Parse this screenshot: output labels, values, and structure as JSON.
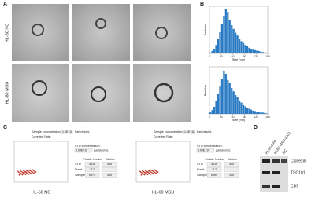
{
  "panels": {
    "a": "A",
    "b": "B",
    "c": "C",
    "d": "D"
  },
  "em": {
    "row_labels": [
      "HL-60 NC",
      "HL-60 MSU"
    ]
  },
  "hist": {
    "xlabel": "Size (nm)",
    "ylabel": "Particles",
    "xticks": [
      0,
      30,
      60,
      90,
      120,
      150
    ],
    "xlim": [
      0,
      150
    ],
    "ylim": [
      0,
      100
    ],
    "plots": [
      {
        "values": [
          2,
          5,
          10,
          18,
          30,
          45,
          62,
          80,
          95,
          88,
          70,
          60,
          52,
          44,
          38,
          30,
          26,
          22,
          18,
          15,
          12,
          10,
          8,
          7,
          6,
          5,
          4,
          3,
          2,
          2
        ]
      },
      {
        "values": [
          3,
          8,
          15,
          28,
          42,
          58,
          75,
          92,
          85,
          72,
          66,
          55,
          48,
          40,
          35,
          28,
          24,
          20,
          16,
          13,
          11,
          9,
          7,
          6,
          5,
          4,
          3,
          3,
          2,
          1
        ]
      }
    ]
  },
  "nta": [
    {
      "caption": "HL-60 NC",
      "sample_conc": "Sample concentration:",
      "sample_val": "1.0E+11",
      "unit": "Particles/mL",
      "corrected": "Corrected Rate:",
      "std_conc": "STD concentration:",
      "std_val": "6.09E+10",
      "std_unit": "particles/mL",
      "cols": [
        "Particle Number",
        "Dilution"
      ],
      "rows": [
        [
          "STD",
          "3316",
          "300"
        ],
        [
          "Blank",
          "117",
          "-"
        ],
        [
          "Sample",
          "5874",
          "300"
        ]
      ]
    },
    {
      "caption": "HL-60 MSU",
      "sample_conc": "Sample concentration:",
      "sample_val": "1.0E+11",
      "unit": "Particles/mL",
      "corrected": "Corrected Rate:",
      "std_conc": "STD concentration:",
      "std_val": "6.09E+10",
      "std_unit": "particles/mL",
      "cols": [
        "Particle Number",
        "Dilution"
      ],
      "rows": [
        [
          "STD",
          "3316",
          "300"
        ],
        [
          "Blank",
          "117",
          "-"
        ],
        [
          "Sample",
          "5895",
          "300"
        ]
      ]
    }
  ],
  "blot": {
    "lanes": [
      "HL60-EXO",
      "HL60-MSU-EXO",
      "NC"
    ],
    "proteins": [
      "Calnexin",
      "TSG101",
      "CD9"
    ]
  }
}
